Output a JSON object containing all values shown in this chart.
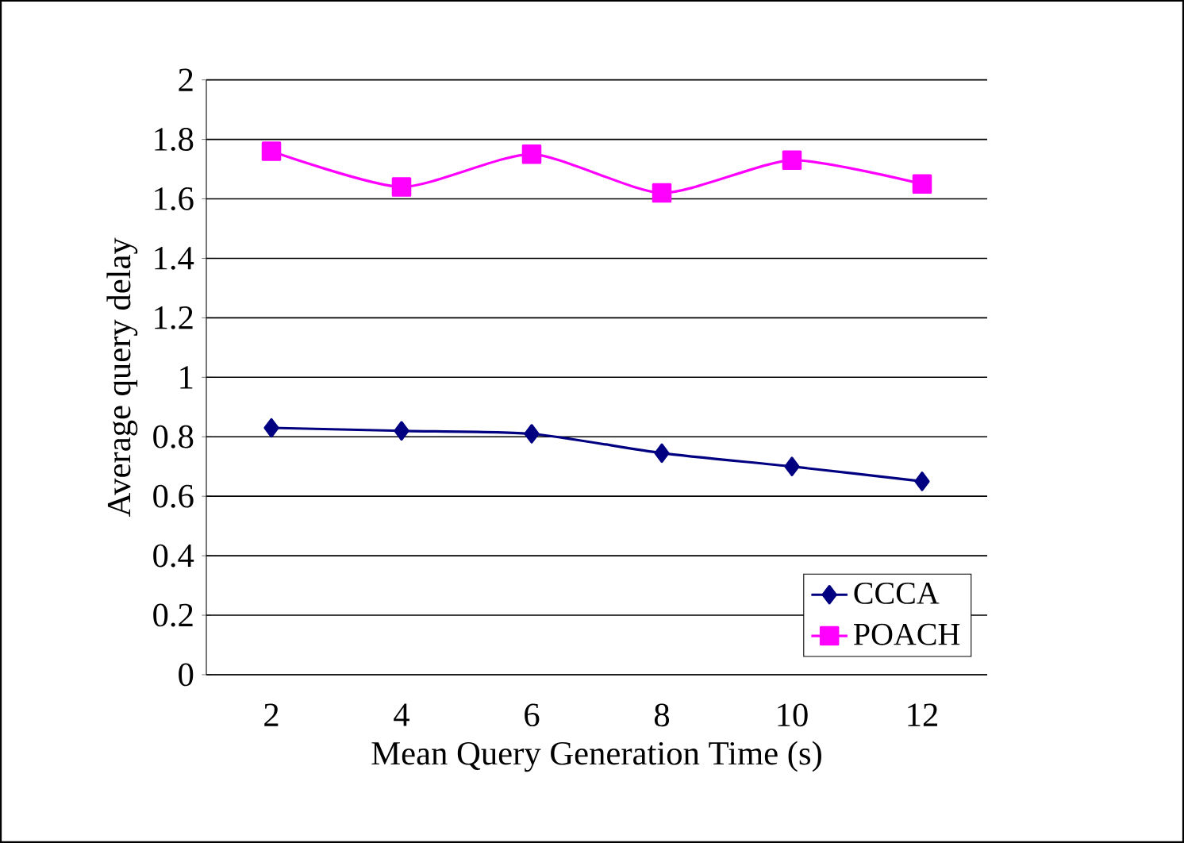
{
  "chart_data": {
    "type": "line",
    "xlabel": "Mean Query Generation Time (s)",
    "ylabel": "Average query delay",
    "categories": [
      "2",
      "4",
      "6",
      "8",
      "10",
      "12"
    ],
    "series": [
      {
        "name": "CCCA",
        "color": "#000080",
        "marker": "diamond",
        "values": [
          0.83,
          0.82,
          0.81,
          0.745,
          0.7,
          0.65
        ]
      },
      {
        "name": "POACH",
        "color": "#ff00ff",
        "marker": "square",
        "values": [
          1.76,
          1.64,
          1.75,
          1.62,
          1.73,
          1.65
        ]
      }
    ],
    "ylim": [
      0,
      2
    ],
    "yticks": [
      0,
      0.2,
      0.4,
      0.6,
      0.8,
      1,
      1.2,
      1.4,
      1.6,
      1.8,
      2
    ],
    "grid": "y",
    "legend": "bottom right",
    "line_style": "solid"
  }
}
